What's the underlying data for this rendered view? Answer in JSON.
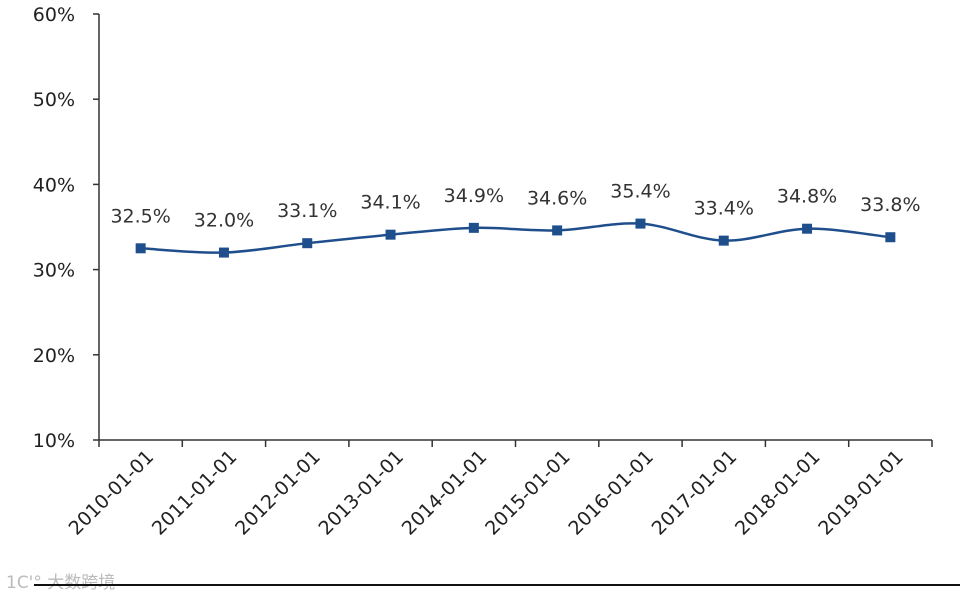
{
  "chart_data": {
    "type": "line",
    "categories": [
      "2010-01-01",
      "2011-01-01",
      "2012-01-01",
      "2013-01-01",
      "2014-01-01",
      "2015-01-01",
      "2016-01-01",
      "2017-01-01",
      "2018-01-01",
      "2019-01-01"
    ],
    "series": [
      {
        "values": [
          32.5,
          32.0,
          33.1,
          34.1,
          34.9,
          34.6,
          35.4,
          33.4,
          34.8,
          33.8
        ],
        "labels": [
          "32.5%",
          "32.0%",
          "33.1%",
          "34.1%",
          "34.9%",
          "34.6%",
          "35.4%",
          "33.4%",
          "34.8%",
          "33.8%"
        ],
        "color": "#1f4e8c"
      }
    ],
    "ylim": [
      10,
      60
    ],
    "yticks": [
      "10%",
      "20%",
      "30%",
      "40%",
      "50%",
      "60%"
    ],
    "ytick_values": [
      10,
      20,
      30,
      40,
      50,
      60
    ],
    "grid": false,
    "legend": "none",
    "title": "",
    "xlabel": "",
    "ylabel": ""
  },
  "watermark": "1C'° 大数跨境"
}
